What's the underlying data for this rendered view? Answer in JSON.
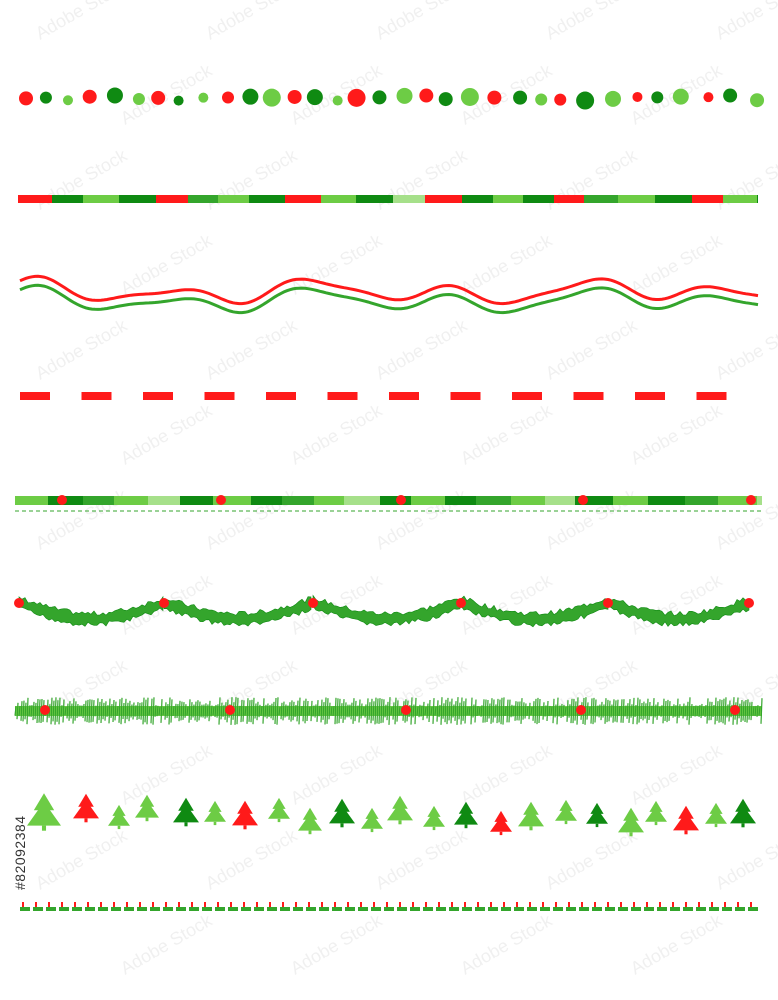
{
  "image_id_text": "#82092384",
  "watermark_text": "Adobe Stock",
  "colors": {
    "red": "#ff1a1a",
    "dark_green": "#0f8a12",
    "mid_green": "#34a52c",
    "light_green": "#6dcc45",
    "pale_green": "#a6e08a"
  },
  "borders": [
    {
      "name": "dots-border",
      "style": "polka-dots"
    },
    {
      "name": "striped-bar-border",
      "style": "color-blocks"
    },
    {
      "name": "wavy-ribbon-border",
      "style": "double-wave"
    },
    {
      "name": "dashed-red-border",
      "style": "dashes"
    },
    {
      "name": "bar-with-baubles-border",
      "style": "blocks-ornaments"
    },
    {
      "name": "garland-swag-border",
      "style": "tinsel-swag"
    },
    {
      "name": "tinsel-garland-border",
      "style": "tinsel-straight"
    },
    {
      "name": "christmas-trees-border",
      "style": "tree-icons"
    },
    {
      "name": "tick-dashed-border",
      "style": "stitch"
    }
  ]
}
